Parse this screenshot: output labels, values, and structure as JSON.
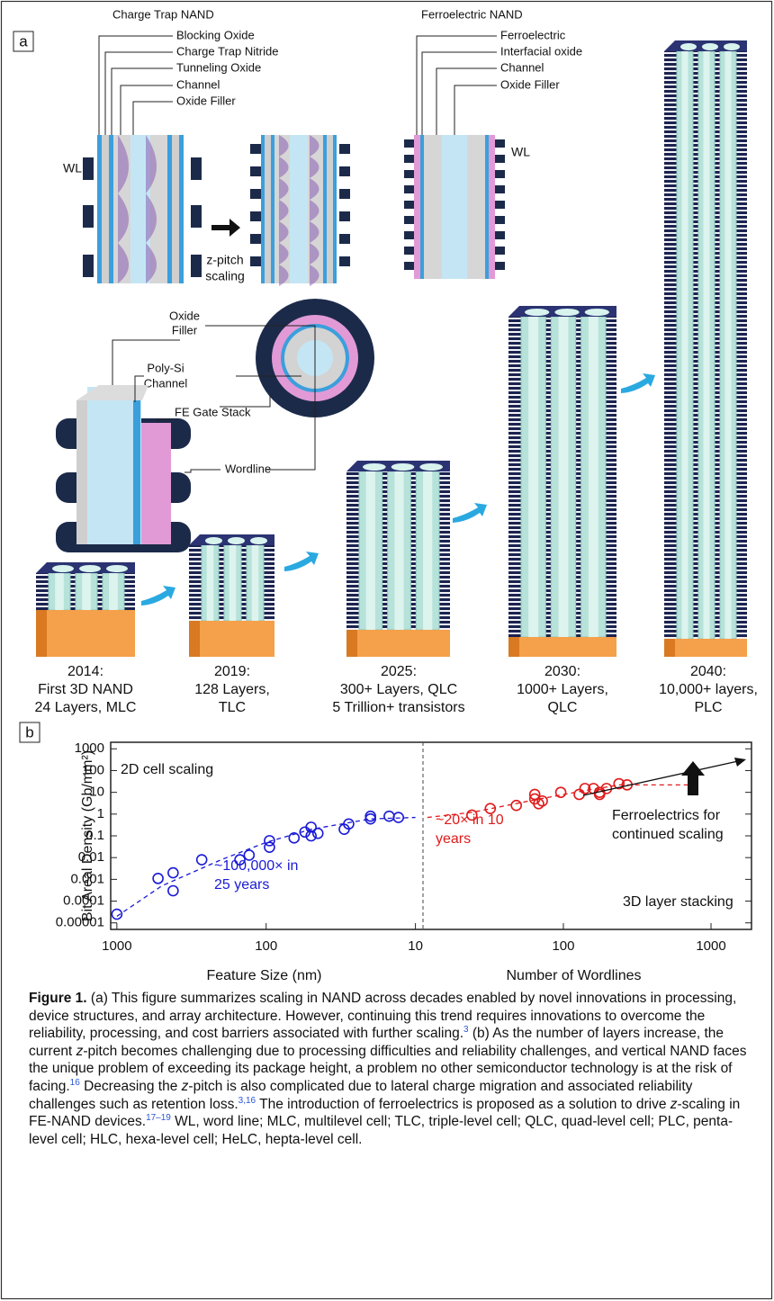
{
  "panel_a": {
    "label": "a",
    "charge_trap": {
      "title": "Charge Trap NAND",
      "layers": [
        "Blocking Oxide",
        "Charge Trap Nitride",
        "Tunneling Oxide",
        "Channel",
        "Oxide Filler"
      ],
      "wl": "WL",
      "scaling": [
        "z-pitch",
        "scaling"
      ]
    },
    "ferroelectric": {
      "title": "Ferroelectric NAND",
      "layers": [
        "Ferroelectric",
        "Interfacial oxide",
        "Channel",
        "Oxide Filler"
      ],
      "wl": "WL"
    },
    "cutaway": {
      "oxide_filler": [
        "Oxide",
        "Filler"
      ],
      "channel": [
        "Poly-Si",
        "Channel"
      ],
      "gate_stack": "FE Gate Stack",
      "wordline": "Wordline"
    },
    "generations": [
      [
        "2014:",
        "First 3D NAND",
        "24 Layers, MLC"
      ],
      [
        "2019:",
        "128 Layers,",
        "TLC"
      ],
      [
        "2025:",
        "300+ Layers, QLC",
        "5 Trillion+ transistors"
      ],
      [
        "2030:",
        "1000+ Layers,",
        "QLC"
      ],
      [
        "2040:",
        "10,000+ layers,",
        "PLC"
      ]
    ]
  },
  "panel_b": {
    "label": "b"
  },
  "chart_data": {
    "type": "scatter",
    "y_label": "Bit Areal Density (Gb/mm²)",
    "log_y": true,
    "ylim": [
      5e-06,
      2000
    ],
    "yticks": [
      1000,
      100,
      10,
      1,
      0.1,
      0.01,
      0.001,
      0.0001,
      1e-05
    ],
    "panels": [
      {
        "x_label": "Feature Size (nm)",
        "log_x": true,
        "xlim": [
          1100,
          8.9
        ],
        "xticks": [
          1000,
          100,
          10
        ],
        "series": [
          {
            "color": "#1a1ad6",
            "marker": "circle",
            "x": [
              1000,
              530,
              420,
              420,
              270,
              150,
              130,
              95,
              95,
              65,
              55,
              50,
              50,
              45,
              30,
              28,
              20,
              20,
              15,
              13
            ],
            "values": [
              2.5e-05,
              0.0011,
              0.002,
              0.0003,
              0.008,
              0.008,
              0.013,
              0.03,
              0.06,
              0.08,
              0.15,
              0.1,
              0.25,
              0.13,
              0.2,
              0.35,
              0.8,
              0.6,
              0.8,
              0.7
            ]
          },
          {
            "color": "#1a1ad6",
            "line_style": "dashed",
            "x": [
              1000,
              500,
              200,
              100,
              50,
              20,
              10
            ],
            "values": [
              2e-05,
              0.0005,
              0.008,
              0.05,
              0.2,
              0.6,
              0.7
            ]
          }
        ]
      },
      {
        "x_label": "Number of Wordlines",
        "log_x": true,
        "xlim": [
          11.2,
          1880
        ],
        "xticks": [
          100,
          1000
        ],
        "series": [
          {
            "color": "#e01a1a",
            "marker": "circle",
            "x": [
              24,
              32,
              48,
              64,
              64,
              68,
              72,
              96,
              128,
              140,
              160,
              176,
              176,
              196,
              238,
              270
            ],
            "values": [
              0.9,
              1.8,
              2.5,
              8,
              5,
              3,
              4,
              10,
              8,
              15,
              15,
              10,
              8,
              15,
              25,
              22
            ]
          },
          {
            "color": "#e01a1a",
            "line_style": "dashed",
            "x": [
              12,
              24,
              64,
              130,
              240,
              780
            ],
            "values": [
              0.7,
              1.2,
              4.5,
              11,
              22,
              22
            ]
          }
        ]
      }
    ],
    "annotations": [
      {
        "lines": [
          "2D cell scaling"
        ],
        "color": "#111"
      },
      {
        "lines": [
          "~100,000× in",
          "25 years"
        ],
        "color": "#1a1ad6"
      },
      {
        "lines": [
          "~20× in 10",
          "years"
        ],
        "color": "#e01a1a"
      },
      {
        "lines": [
          "Ferroelectrics for",
          "continued scaling"
        ],
        "color": "#111"
      },
      {
        "lines": [
          "3D layer stacking"
        ],
        "color": "#111"
      }
    ]
  },
  "caption": {
    "runs": [
      {
        "text": "Figure 1.",
        "style": "bold"
      },
      {
        "text": "  (a) This figure summarizes scaling in NAND across decades enabled by novel innovations in processing, device structures, and array architecture. However, continuing this trend requires innovations to overcome the reliability, processing, and cost barriers associated with further scaling."
      },
      {
        "text": "3",
        "style": "sup"
      },
      {
        "text": " (b) As the number of layers increase, the current "
      },
      {
        "text": "z",
        "style": "italic"
      },
      {
        "text": "-pitch becomes challenging due to processing difficulties and reliability challenges, and vertical NAND faces the unique problem of exceeding its package height, a problem no other semiconductor technology is at the risk of facing."
      },
      {
        "text": "16",
        "style": "sup"
      },
      {
        "text": " Decreasing the "
      },
      {
        "text": "z",
        "style": "italic"
      },
      {
        "text": "-pitch is also complicated due to lateral charge migration and associated reliability challenges such as retention loss."
      },
      {
        "text": "3,16",
        "style": "sup"
      },
      {
        "text": " The introduction of ferroelectrics is proposed as a solution to drive "
      },
      {
        "text": "z",
        "style": "italic"
      },
      {
        "text": "-scaling in FE-NAND devices."
      },
      {
        "text": "17–19",
        "style": "sup"
      },
      {
        "text": " WL, word line; MLC, multilevel cell; TLC, triple-level cell; QLC, quad-level cell; PLC, penta-level cell; HLC, hexa-level cell; HeLC, hepta-level cell."
      }
    ]
  }
}
